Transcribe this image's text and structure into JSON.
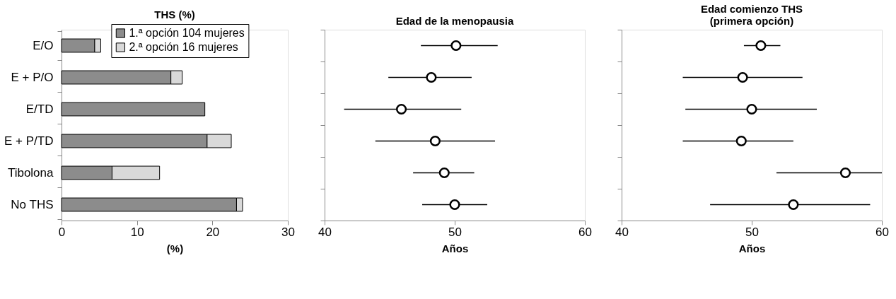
{
  "chart_data": [
    {
      "type": "bar",
      "orientation": "horizontal",
      "stacked": true,
      "title": "THS (%)",
      "xlabel": "(%)",
      "categories": [
        "E/O",
        "E + P/O",
        "E/TD",
        "E + P/TD",
        "Tibolona",
        "No THS"
      ],
      "series": [
        {
          "name": "1.ª opción 104 mujeres",
          "color": "#8c8c8c",
          "values": [
            4.4,
            14.5,
            19.0,
            19.3,
            6.7,
            23.2
          ]
        },
        {
          "name": "2.ª opción 16 mujeres",
          "color": "#d9d9d9",
          "values": [
            0.8,
            1.5,
            null,
            3.2,
            6.3,
            0.8
          ]
        }
      ],
      "xlim": [
        0,
        30
      ],
      "xticks": [
        0,
        10,
        20,
        30
      ],
      "legend": "top right",
      "grid": false
    },
    {
      "type": "scatter",
      "orientation": "horizontal",
      "title": "Edad de la menopausia",
      "xlabel": "Años",
      "categories": [
        null,
        null,
        null,
        null,
        null,
        null
      ],
      "series": [
        {
          "color": "#000000",
          "values": [
            50.1,
            48.2,
            45.9,
            48.5,
            49.2,
            50.0
          ],
          "errors": [
            [
              47.4,
              53.3
            ],
            [
              44.9,
              51.3
            ],
            [
              41.5,
              50.5
            ],
            [
              43.9,
              53.1
            ],
            [
              46.8,
              51.5
            ],
            [
              47.5,
              52.5
            ]
          ]
        }
      ],
      "xlim": [
        40,
        60
      ],
      "xticks": [
        40,
        50,
        60
      ],
      "tick_labels": "x",
      "marker": "circle",
      "grid": false
    },
    {
      "type": "scatter",
      "orientation": "horizontal",
      "title": "Edad comienzo THS\n(primera opción)",
      "xlabel": "Años",
      "categories": [
        null,
        null,
        null,
        null,
        null,
        null
      ],
      "series": [
        {
          "color": "#000000",
          "values": [
            50.7,
            49.3,
            50.0,
            49.2,
            57.2,
            53.2
          ],
          "errors": [
            [
              49.4,
              52.2
            ],
            [
              44.7,
              53.9
            ],
            [
              44.9,
              55.0
            ],
            [
              44.7,
              53.2
            ],
            [
              51.9,
              60.0
            ],
            [
              46.8,
              59.1
            ]
          ]
        }
      ],
      "xlim": [
        40,
        60
      ],
      "xticks": [
        40,
        50,
        60
      ],
      "tick_labels": "x",
      "marker": "circle",
      "grid": false
    }
  ]
}
